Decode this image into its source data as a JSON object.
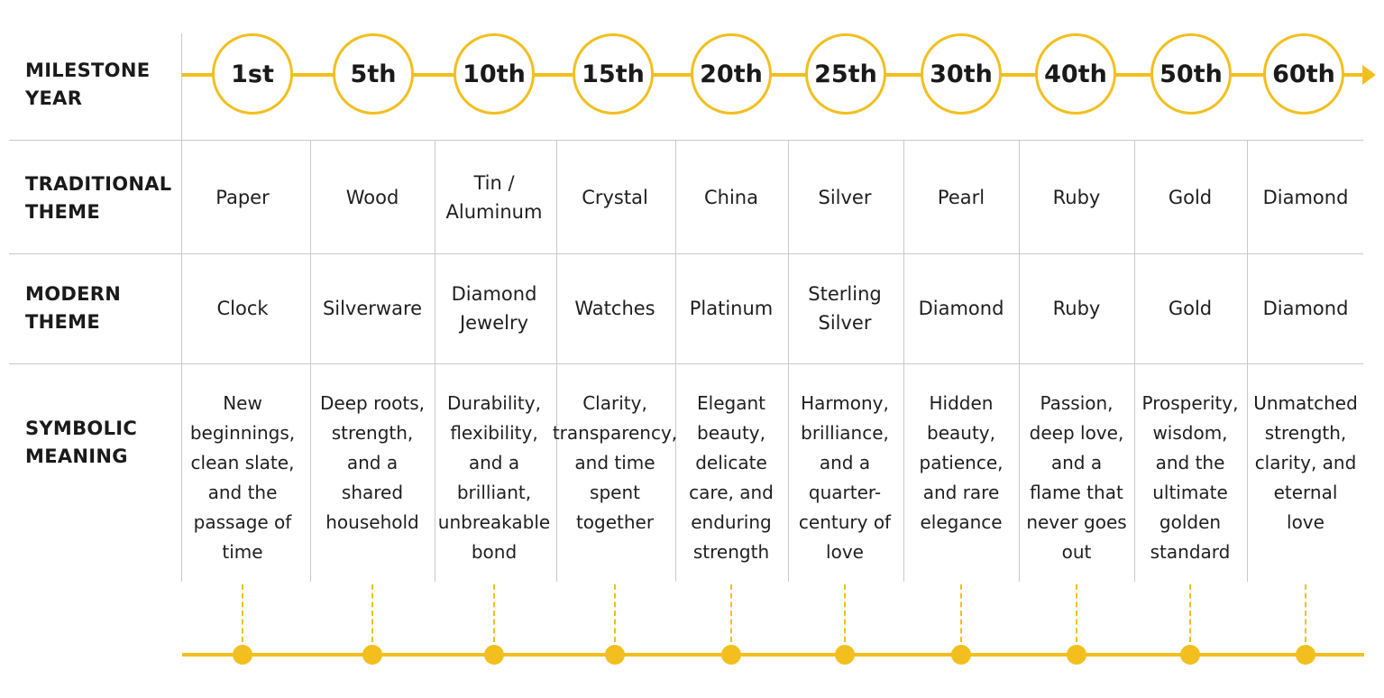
{
  "row_labels": {
    "milestone": "MILESTONE\nYEAR",
    "traditional": "TRADITIONAL\nTHEME",
    "modern": "MODERN\nTHEME",
    "meaning": "SYMBOLIC\nMEANING"
  },
  "milestones": [
    {
      "year": "1st",
      "traditional": "Paper",
      "modern": "Clock",
      "meaning": "New\nbeginnings,\nclean slate,\nand the\npassage of\ntime"
    },
    {
      "year": "5th",
      "traditional": "Wood",
      "modern": "Silverware",
      "meaning": "Deep roots,\nstrength,\nand a\nshared\nhousehold"
    },
    {
      "year": "10th",
      "traditional": "Tin /\nAluminum",
      "modern": "Diamond\nJewelry",
      "meaning": "Durability,\nflexibility,\nand a\nbrilliant,\nunbreakable\nbond"
    },
    {
      "year": "15th",
      "traditional": "Crystal",
      "modern": "Watches",
      "meaning": "Clarity,\ntransparency,\nand time\nspent\ntogether"
    },
    {
      "year": "20th",
      "traditional": "China",
      "modern": "Platinum",
      "meaning": "Elegant\nbeauty,\ndelicate\ncare, and\nenduring\nstrength"
    },
    {
      "year": "25th",
      "traditional": "Silver",
      "modern": "Sterling\nSilver",
      "meaning": "Harmony,\nbrilliance,\nand a\nquarter-\ncentury of\nlove"
    },
    {
      "year": "30th",
      "traditional": "Pearl",
      "modern": "Diamond",
      "meaning": "Hidden\nbeauty,\npatience,\nand rare\nelegance"
    },
    {
      "year": "40th",
      "traditional": "Ruby",
      "modern": "Ruby",
      "meaning": "Passion,\ndeep love,\nand a\nflame that\nnever goes\nout"
    },
    {
      "year": "50th",
      "traditional": "Gold",
      "modern": "Gold",
      "meaning": "Prosperity,\nwisdom,\nand the\nultimate\ngolden\nstandard"
    },
    {
      "year": "60th",
      "traditional": "Diamond",
      "modern": "Diamond",
      "meaning": "Unmatched\nstrength,\nclarity, and\neternal\nlove"
    }
  ],
  "colors": {
    "accent": "#f2bf1e",
    "grid": "#c9c9c9",
    "text": "#1f1f1f"
  }
}
